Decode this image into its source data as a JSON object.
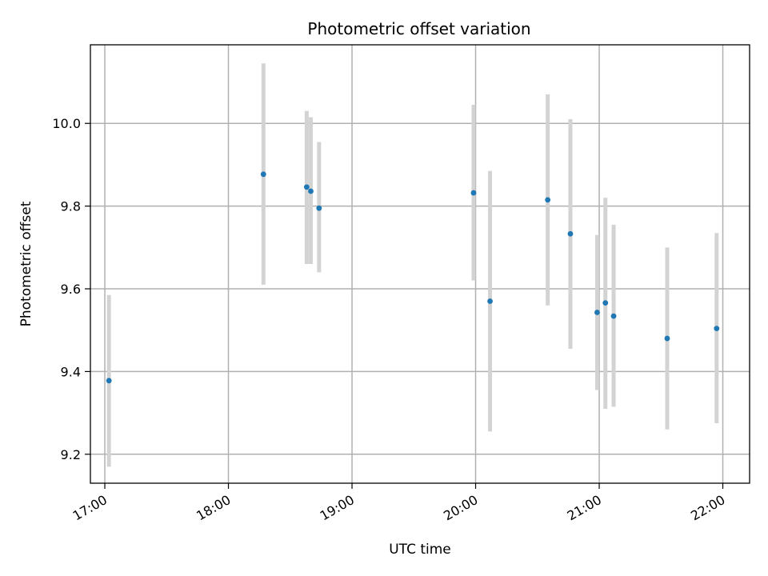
{
  "chart_data": {
    "type": "scatter",
    "title": "Photometric offset variation",
    "xlabel": "UTC time",
    "ylabel": "Photometric offset",
    "x_tick_labels": [
      "17:00",
      "18:00",
      "19:00",
      "20:00",
      "21:00",
      "22:00"
    ],
    "y_tick_labels": [
      "9.2",
      "9.4",
      "9.6",
      "9.8",
      "10.0"
    ],
    "x_ticks": [
      "17:00",
      "18:00",
      "19:00",
      "20:00",
      "21:00",
      "22:00"
    ],
    "y_ticks": [
      9.2,
      9.4,
      9.6,
      9.8,
      10.0
    ],
    "xlim": [
      "16:53",
      "22:13"
    ],
    "ylim": [
      9.13,
      10.19
    ],
    "grid": true,
    "points": [
      {
        "x": "17:02",
        "y": 9.378,
        "err_low": 9.17,
        "err_high": 9.585
      },
      {
        "x": "18:17",
        "y": 9.877,
        "err_low": 9.61,
        "err_high": 10.145
      },
      {
        "x": "18:38",
        "y": 9.846,
        "err_low": 9.66,
        "err_high": 10.03
      },
      {
        "x": "18:40",
        "y": 9.836,
        "err_low": 9.66,
        "err_high": 10.015
      },
      {
        "x": "18:44",
        "y": 9.795,
        "err_low": 9.64,
        "err_high": 9.955
      },
      {
        "x": "19:59",
        "y": 9.832,
        "err_low": 9.62,
        "err_high": 10.045
      },
      {
        "x": "20:07",
        "y": 9.57,
        "err_low": 9.255,
        "err_high": 9.885
      },
      {
        "x": "20:35",
        "y": 9.815,
        "err_low": 9.56,
        "err_high": 10.07
      },
      {
        "x": "20:46",
        "y": 9.733,
        "err_low": 9.455,
        "err_high": 10.01
      },
      {
        "x": "20:59",
        "y": 9.543,
        "err_low": 9.355,
        "err_high": 9.73
      },
      {
        "x": "21:03",
        "y": 9.566,
        "err_low": 9.31,
        "err_high": 9.82
      },
      {
        "x": "21:07",
        "y": 9.534,
        "err_low": 9.315,
        "err_high": 9.755
      },
      {
        "x": "21:33",
        "y": 9.48,
        "err_low": 9.26,
        "err_high": 9.7
      },
      {
        "x": "21:57",
        "y": 9.504,
        "err_low": 9.275,
        "err_high": 9.735
      }
    ],
    "point_color": "#1f77b4",
    "errorbar_color": "#d3d3d3",
    "grid_color": "#b0b0b0"
  }
}
